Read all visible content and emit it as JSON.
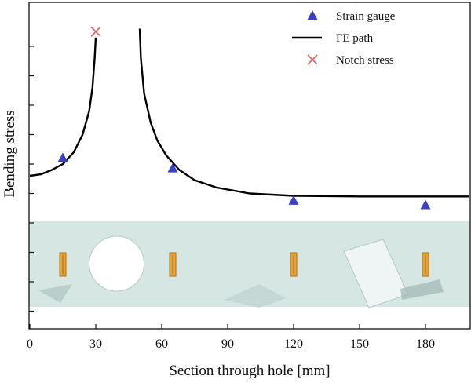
{
  "chart_data": {
    "type": "line",
    "xlabel": "Section through hole [mm]",
    "ylabel": "Bending stress",
    "xlim": [
      0,
      200
    ],
    "x_ticks": [
      0,
      30,
      60,
      90,
      120,
      150,
      180
    ],
    "y_ticks_count": 10,
    "y_ticks_labeled": false,
    "grid": false,
    "legend_position": "top-right",
    "legend": [
      "Strain gauge",
      "FE path",
      "Notch stress"
    ],
    "series": [
      {
        "name": "Strain gauge",
        "kind": "scatter",
        "marker": "triangle",
        "color": "#3a3fc4",
        "points": [
          {
            "x": 15,
            "y": 6.2
          },
          {
            "x": 65,
            "y": 5.85
          },
          {
            "x": 120,
            "y": 4.75
          },
          {
            "x": 180,
            "y": 4.6
          }
        ]
      },
      {
        "name": "FE path",
        "kind": "line",
        "color": "#000000",
        "segments": [
          [
            {
              "x": 0,
              "y": 5.6
            },
            {
              "x": 5,
              "y": 5.65
            },
            {
              "x": 10,
              "y": 5.8
            },
            {
              "x": 15,
              "y": 6.0
            },
            {
              "x": 20,
              "y": 6.4
            },
            {
              "x": 24,
              "y": 7.0
            },
            {
              "x": 27,
              "y": 7.8
            },
            {
              "x": 28.5,
              "y": 8.6
            },
            {
              "x": 29.5,
              "y": 9.6
            },
            {
              "x": 30,
              "y": 10.3
            }
          ],
          [
            {
              "x": 50,
              "y": 10.6
            },
            {
              "x": 50.5,
              "y": 9.6
            },
            {
              "x": 52,
              "y": 8.4
            },
            {
              "x": 55,
              "y": 7.4
            },
            {
              "x": 58,
              "y": 6.8
            },
            {
              "x": 62,
              "y": 6.3
            },
            {
              "x": 68,
              "y": 5.8
            },
            {
              "x": 75,
              "y": 5.45
            },
            {
              "x": 85,
              "y": 5.2
            },
            {
              "x": 100,
              "y": 5.0
            },
            {
              "x": 120,
              "y": 4.92
            },
            {
              "x": 150,
              "y": 4.9
            },
            {
              "x": 180,
              "y": 4.9
            },
            {
              "x": 200,
              "y": 4.9
            }
          ]
        ]
      },
      {
        "name": "Notch stress",
        "kind": "scatter",
        "marker": "x",
        "color": "#e06060",
        "points": [
          {
            "x": 30,
            "y": 10.5
          }
        ]
      }
    ],
    "specimen_photo": {
      "hole_x": [
        27,
        52
      ],
      "gauges_x": [
        15,
        65,
        120,
        180
      ]
    }
  }
}
